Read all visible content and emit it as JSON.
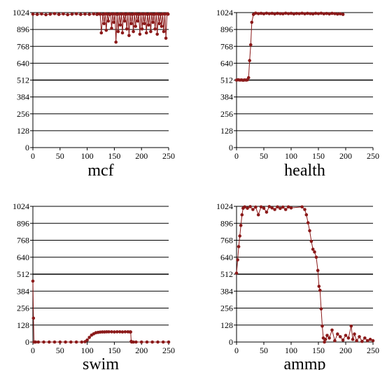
{
  "colors": {
    "series": "#8b1a1a",
    "grid": "#000000",
    "axis": "#000000"
  },
  "chart_data": [
    {
      "type": "line",
      "title": "mcf",
      "xlim": [
        0,
        250
      ],
      "ylim": [
        0,
        1024
      ],
      "xticks": [
        "0",
        "50",
        "100",
        "150",
        "200",
        "250"
      ],
      "yticks": [
        "0",
        "128",
        "256",
        "384",
        "512",
        "640",
        "768",
        "896",
        "1024"
      ],
      "grid": true,
      "series": [
        {
          "x": [
            0,
            8,
            16,
            24,
            32,
            40,
            48,
            56,
            64,
            72,
            80,
            88,
            96,
            104,
            112,
            118,
            122,
            124,
            126,
            129,
            131,
            133,
            135,
            137,
            139,
            141,
            143,
            145,
            147,
            149,
            151,
            153,
            155,
            157,
            159,
            161,
            163,
            165,
            167,
            169,
            171,
            173,
            175,
            177,
            179,
            181,
            183,
            185,
            187,
            189,
            191,
            193,
            195,
            197,
            199,
            201,
            203,
            205,
            207,
            209,
            211,
            213,
            215,
            217,
            219,
            221,
            223,
            225,
            227,
            229,
            231,
            233,
            235,
            237,
            239,
            241,
            243,
            245,
            247,
            249
          ],
          "y": [
            1012,
            1010,
            1014,
            1008,
            1012,
            1016,
            1010,
            1014,
            1008,
            1012,
            1015,
            1010,
            1013,
            1011,
            1014,
            1010,
            1015,
            1012,
            870,
            1010,
            940,
            1015,
            890,
            1012,
            960,
            1010,
            1014,
            905,
            1012,
            950,
            1015,
            800,
            1010,
            880,
            1014,
            930,
            1012,
            870,
            1015,
            960,
            1010,
            900,
            1014,
            850,
            1012,
            940,
            1010,
            880,
            1015,
            920,
            1012,
            960,
            1010,
            860,
            1014,
            900,
            1012,
            940,
            1015,
            870,
            1010,
            930,
            1014,
            880,
            1012,
            950,
            1010,
            900,
            1015,
            860,
            1012,
            940,
            1010,
            920,
            1014,
            880,
            1012,
            830,
            1015,
            1012
          ]
        }
      ]
    },
    {
      "type": "line",
      "title": "health",
      "xlim": [
        0,
        250
      ],
      "ylim": [
        0,
        1024
      ],
      "xticks": [
        "0",
        "50",
        "100",
        "150",
        "200",
        "250"
      ],
      "yticks": [
        "0",
        "128",
        "256",
        "384",
        "512",
        "640",
        "768",
        "896",
        "1024"
      ],
      "grid": true,
      "series": [
        {
          "x": [
            0,
            3,
            6,
            9,
            12,
            15,
            18,
            20,
            22,
            24,
            26,
            28,
            31,
            35,
            40,
            45,
            50,
            55,
            60,
            65,
            70,
            75,
            80,
            85,
            90,
            95,
            100,
            105,
            110,
            115,
            120,
            125,
            130,
            135,
            140,
            145,
            150,
            155,
            160,
            165,
            170,
            175,
            180,
            185,
            190,
            195
          ],
          "y": [
            512,
            514,
            512,
            513,
            511,
            513,
            512,
            514,
            530,
            660,
            780,
            950,
            1010,
            1020,
            1016,
            1018,
            1015,
            1019,
            1016,
            1018,
            1014,
            1018,
            1016,
            1015,
            1019,
            1016,
            1018,
            1014,
            1017,
            1016,
            1019,
            1015,
            1018,
            1016,
            1014,
            1018,
            1016,
            1019,
            1015,
            1017,
            1014,
            1018,
            1016,
            1013,
            1015,
            1010
          ]
        }
      ]
    },
    {
      "type": "line",
      "title": "swim",
      "xlim": [
        0,
        250
      ],
      "ylim": [
        0,
        1024
      ],
      "xticks": [
        "0",
        "50",
        "100",
        "150",
        "200",
        "250"
      ],
      "yticks": [
        "0",
        "128",
        "256",
        "384",
        "512",
        "640",
        "768",
        "896",
        "1024"
      ],
      "grid": true,
      "series": [
        {
          "x": [
            0,
            1,
            2,
            3,
            5,
            10,
            20,
            30,
            40,
            50,
            60,
            70,
            80,
            90,
            96,
            100,
            104,
            108,
            112,
            116,
            120,
            124,
            128,
            132,
            136,
            140,
            145,
            150,
            155,
            160,
            165,
            170,
            175,
            179,
            180,
            181,
            182,
            185,
            190,
            200,
            210,
            220,
            230,
            240,
            250
          ],
          "y": [
            460,
            180,
            0,
            0,
            0,
            0,
            0,
            0,
            0,
            0,
            0,
            0,
            0,
            0,
            2,
            15,
            35,
            52,
            62,
            70,
            73,
            75,
            76,
            76,
            77,
            77,
            77,
            76,
            77,
            77,
            76,
            77,
            77,
            76,
            76,
            5,
            0,
            0,
            0,
            0,
            0,
            0,
            0,
            0,
            0
          ]
        }
      ]
    },
    {
      "type": "line",
      "title": "ammp",
      "xlim": [
        0,
        250
      ],
      "ylim": [
        0,
        1024
      ],
      "xticks": [
        "0",
        "50",
        "100",
        "150",
        "200",
        "250"
      ],
      "yticks": [
        "0",
        "128",
        "256",
        "384",
        "512",
        "640",
        "768",
        "896",
        "1024"
      ],
      "grid": true,
      "series": [
        {
          "x": [
            0,
            2,
            4,
            6,
            8,
            10,
            12,
            15,
            20,
            25,
            30,
            35,
            40,
            45,
            50,
            55,
            60,
            65,
            70,
            75,
            80,
            85,
            90,
            95,
            100,
            120,
            125,
            128,
            131,
            134,
            137,
            140,
            143,
            146,
            149,
            151,
            153,
            155,
            157,
            159,
            161,
            163,
            166,
            170,
            175,
            180,
            185,
            190,
            195,
            200,
            205,
            210,
            213,
            216,
            220,
            225,
            230,
            235,
            240,
            245,
            250
          ],
          "y": [
            520,
            620,
            720,
            800,
            880,
            960,
            1010,
            1020,
            1010,
            1022,
            1000,
            1018,
            960,
            1020,
            1010,
            980,
            1022,
            1012,
            1000,
            1020,
            1008,
            1018,
            1000,
            1020,
            1012,
            1020,
            1000,
            960,
            900,
            840,
            760,
            700,
            680,
            640,
            540,
            420,
            390,
            250,
            120,
            30,
            0,
            20,
            50,
            30,
            90,
            10,
            60,
            40,
            15,
            50,
            30,
            120,
            20,
            60,
            10,
            40,
            5,
            30,
            10,
            20,
            10
          ]
        }
      ]
    }
  ]
}
